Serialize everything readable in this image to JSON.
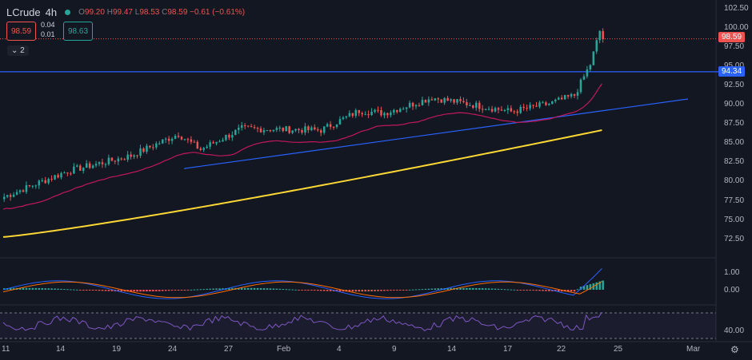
{
  "header": {
    "symbol": "LCrude",
    "interval": "4h",
    "ohlc": {
      "o_key": "O",
      "o": "99.20",
      "h_key": "H",
      "h": "99.47",
      "l_key": "L",
      "l": "98.53",
      "c_key": "C",
      "c": "98.59",
      "change": "−0.61 (−0.61%)"
    }
  },
  "trade": {
    "sell_price": "98.59",
    "buy_price": "98.63",
    "spread_top": "0.04",
    "spread_bottom": "0.01"
  },
  "collapse_label": "⌄ 2",
  "price_axis": [
    "102.50",
    "100.00",
    "97.50",
    "95.00",
    "92.50",
    "90.00",
    "87.50",
    "85.00",
    "82.50",
    "80.00",
    "77.50",
    "75.00",
    "72.50"
  ],
  "price_tags": {
    "current": "98.59",
    "level": "94.34"
  },
  "macd_axis": [
    "1.00",
    "0.00"
  ],
  "rsi_axis": [
    "40.00"
  ],
  "time_axis": [
    "11",
    "14",
    "19",
    "24",
    "27",
    "Feb",
    "4",
    "9",
    "14",
    "17",
    "22",
    "25",
    "Mar"
  ],
  "colors": {
    "bg": "#131722",
    "up": "#26a69a",
    "down": "#ef5350",
    "ma_short": "#c2185b",
    "ma_long": "#fdd835",
    "trend": "#2962ff",
    "rsi": "#7e57c2"
  },
  "icons": {
    "settings": "gear-icon"
  }
}
